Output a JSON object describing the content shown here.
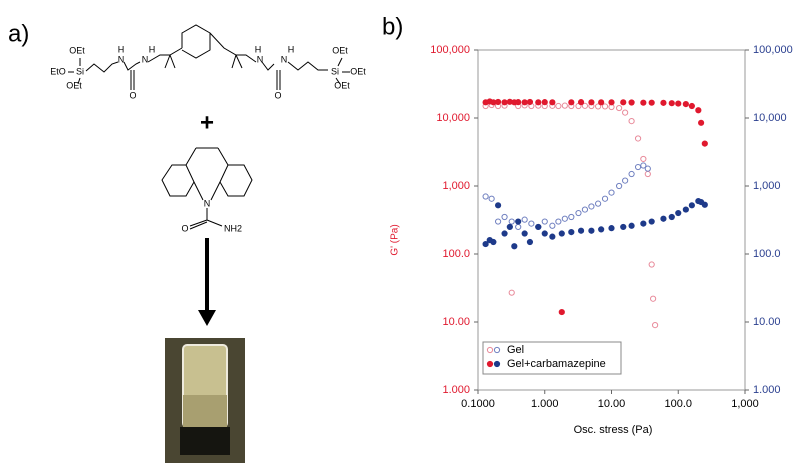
{
  "panels": {
    "a": "a)",
    "b": "b)"
  },
  "scheme": {
    "reagent_labels": [
      "OEt",
      "EtO",
      "Si",
      "OEt",
      "H",
      "N",
      "O",
      "N",
      "H",
      "H",
      "N",
      "O",
      "N",
      "H",
      "Si",
      "OEt",
      "OEt",
      "OEt"
    ],
    "plus": "+",
    "drug_labels": [
      "N",
      "O",
      "NH2"
    ]
  },
  "chart_data": {
    "type": "scatter",
    "xlabel": "Osc. stress (Pa)",
    "ylabel": "G' (Pa)",
    "xscale": "log",
    "yscale": "log",
    "xlim": [
      0.1,
      1000
    ],
    "ylim": [
      1,
      100000
    ],
    "y2lim": [
      1,
      100000
    ],
    "xticks": [
      {
        "value": 0.1,
        "label": "0.1000"
      },
      {
        "value": 1,
        "label": "1.000"
      },
      {
        "value": 10,
        "label": "10.00"
      },
      {
        "value": 100,
        "label": "100.0"
      },
      {
        "value": 1000,
        "label": "1,000"
      }
    ],
    "yticks": [
      {
        "value": 1,
        "label": "1.000"
      },
      {
        "value": 10,
        "label": "10.00"
      },
      {
        "value": 100,
        "label": "100.0"
      },
      {
        "value": 1000,
        "label": "1,000"
      },
      {
        "value": 10000,
        "label": "10,000"
      },
      {
        "value": 100000,
        "label": "100,000"
      }
    ],
    "y2ticks": [
      {
        "value": 1,
        "label": "1.000"
      },
      {
        "value": 10,
        "label": "10.00"
      },
      {
        "value": 100,
        "label": "100.0"
      },
      {
        "value": 1000,
        "label": "1,000"
      },
      {
        "value": 10000,
        "label": "10,000"
      },
      {
        "value": 100000,
        "label": "100,000"
      }
    ],
    "ylabel_color": "#e0192e",
    "y2_color": "#2a3f8f",
    "legend": "lower left",
    "series": [
      {
        "name": "Gel",
        "color": "#e88a9a",
        "marker": "open",
        "x": [
          0.13,
          0.16,
          0.2,
          0.25,
          0.32,
          0.4,
          0.5,
          0.63,
          0.8,
          1,
          1.3,
          1.6,
          2,
          2.5,
          3.2,
          4,
          5,
          6.3,
          8,
          10,
          13,
          16,
          20,
          25,
          30,
          35,
          40,
          42,
          45
        ],
        "values": [
          15000,
          15500,
          15000,
          15200,
          27,
          15000,
          15300,
          15000,
          15200,
          15000,
          15100,
          15000,
          15200,
          15000,
          15000,
          15100,
          15000,
          14800,
          14800,
          14500,
          14000,
          12000,
          9000,
          5000,
          2500,
          1500,
          70,
          22,
          9
        ]
      },
      {
        "name": "Gel",
        "color": "#7080c0",
        "marker": "open",
        "axis": "y2",
        "x": [
          0.13,
          0.16,
          0.2,
          0.25,
          0.32,
          0.4,
          0.5,
          0.63,
          0.8,
          1,
          1.3,
          1.6,
          2,
          2.5,
          3.2,
          4,
          5,
          6.3,
          8,
          10,
          13,
          16,
          20,
          25,
          30,
          35
        ],
        "values": [
          700,
          650,
          300,
          350,
          300,
          250,
          320,
          280,
          250,
          300,
          260,
          300,
          330,
          350,
          400,
          450,
          500,
          550,
          650,
          800,
          1000,
          1200,
          1500,
          1900,
          2000,
          1800
        ]
      },
      {
        "name": "Gel+carbamazepine",
        "color": "#e0192e",
        "marker": "filled",
        "x": [
          0.13,
          0.15,
          0.17,
          0.2,
          0.25,
          0.3,
          0.35,
          0.4,
          0.5,
          0.6,
          0.8,
          1,
          1.3,
          1.8,
          2.5,
          3.5,
          5,
          7,
          10,
          15,
          20,
          30,
          40,
          60,
          80,
          100,
          130,
          160,
          200,
          220,
          250
        ],
        "values": [
          17000,
          17500,
          17000,
          17200,
          17000,
          17300,
          17000,
          17100,
          17000,
          17200,
          17000,
          17100,
          17000,
          14,
          17000,
          17100,
          17000,
          17000,
          17000,
          17000,
          16900,
          16800,
          16800,
          16700,
          16500,
          16300,
          16000,
          15000,
          13000,
          8500,
          4200
        ]
      },
      {
        "name": "Gel+carbamazepine",
        "color": "#1e3a8a",
        "marker": "filled",
        "axis": "y2",
        "x": [
          0.13,
          0.15,
          0.17,
          0.2,
          0.25,
          0.3,
          0.35,
          0.4,
          0.5,
          0.6,
          0.8,
          1,
          1.3,
          1.8,
          2.5,
          3.5,
          5,
          7,
          10,
          15,
          20,
          30,
          40,
          60,
          80,
          100,
          130,
          160,
          200,
          220,
          250
        ],
        "values": [
          140,
          160,
          150,
          520,
          200,
          250,
          130,
          300,
          200,
          150,
          250,
          200,
          180,
          200,
          210,
          220,
          220,
          230,
          240,
          250,
          260,
          280,
          300,
          330,
          350,
          400,
          450,
          520,
          600,
          580,
          530
        ]
      }
    ]
  }
}
